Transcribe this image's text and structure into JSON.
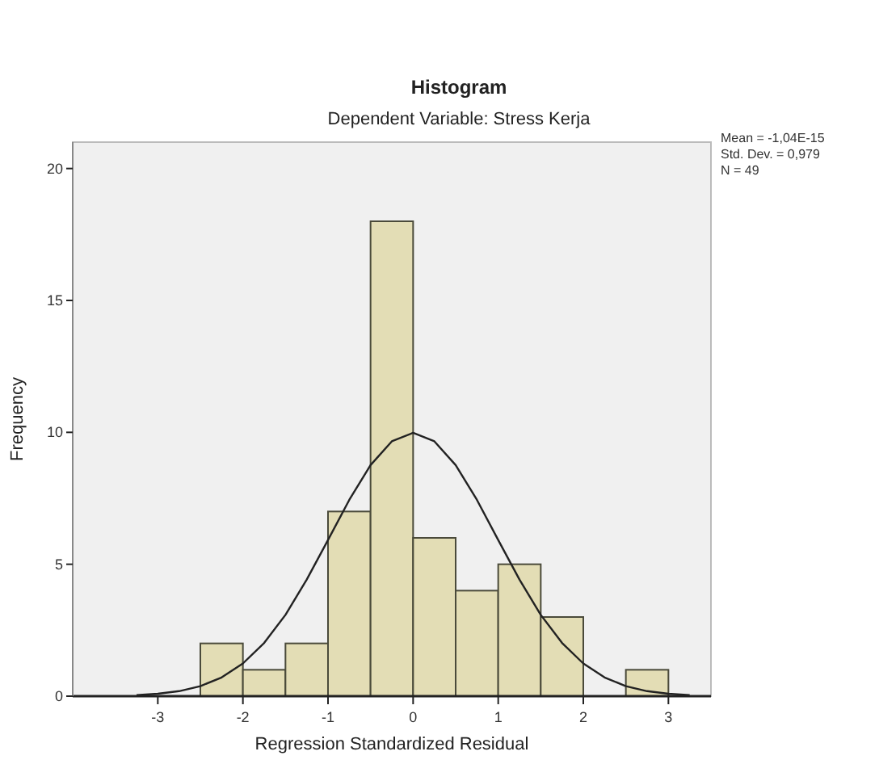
{
  "chart_data": {
    "type": "histogram",
    "title": "Histogram",
    "subtitle": "Dependent Variable: Stress Kerja",
    "xlabel": "Regression Standardized Residual",
    "ylabel": "Frequency",
    "bins": [
      -2.5,
      -2,
      -1.5,
      -1,
      -0.5,
      0,
      0.5,
      1,
      1.5,
      2,
      2.5,
      3
    ],
    "values": [
      2,
      1,
      2,
      7,
      18,
      6,
      4,
      5,
      3,
      0,
      1
    ],
    "color": "#e3ddb5",
    "series": [
      {
        "type": "line",
        "color": "#222222",
        "x": [
          -3.25,
          -3,
          -2.75,
          -2.5,
          -2.25,
          -2,
          -1.75,
          -1.5,
          -1.25,
          -1,
          -0.75,
          -0.5,
          -0.25,
          0,
          0.25,
          0.5,
          0.75,
          1,
          1.25,
          1.5,
          1.75,
          2,
          2.25,
          2.5,
          2.75,
          3,
          3.25
        ],
        "values": [
          0.04,
          0.09,
          0.19,
          0.38,
          0.71,
          1.24,
          2.02,
          3.08,
          4.42,
          5.92,
          7.44,
          8.76,
          9.66,
          9.98,
          9.66,
          8.76,
          7.44,
          5.92,
          4.42,
          3.08,
          2.02,
          1.24,
          0.71,
          0.38,
          0.19,
          0.09,
          0.04
        ]
      }
    ],
    "xlim": [
      -4,
      3.5
    ],
    "xticks": [
      -3,
      -2,
      -1,
      0,
      1,
      2,
      3
    ],
    "ylim": [
      0,
      21
    ],
    "yticks": [
      0,
      5,
      10,
      15,
      20
    ],
    "grid": false,
    "annotations": [
      "Mean = -1,04E-15",
      "Std. Dev. = 0,979",
      "N = 49"
    ]
  }
}
